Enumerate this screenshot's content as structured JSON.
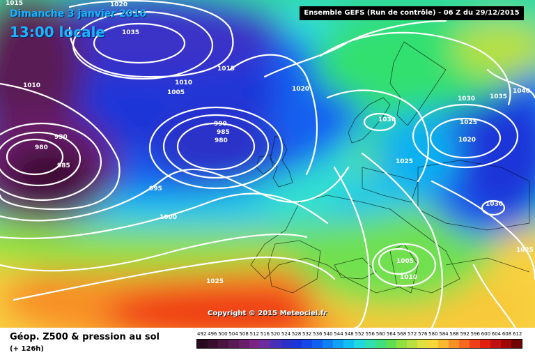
{
  "title": {
    "date": "Dimanche 3 janvier 2016",
    "local_time": "13:00 locale"
  },
  "banner": "Ensemble GEFS  (Run de contrôle)  -  06 Z du 29/12/2015",
  "copyright": "Copyright © 2015 Meteociel.fr",
  "legend": {
    "title": "Géop. Z500 & pression au sol",
    "forecast_hour": "(+ 126h)",
    "scale_values": [
      "492",
      "496",
      "500",
      "504",
      "508",
      "512",
      "516",
      "520",
      "524",
      "528",
      "532",
      "536",
      "540",
      "544",
      "548",
      "552",
      "556",
      "560",
      "564",
      "568",
      "572",
      "576",
      "580",
      "584",
      "588",
      "592",
      "596",
      "600",
      "604",
      "608",
      "612"
    ],
    "scale_colors": [
      "#2a0a20",
      "#3a0f2e",
      "#4a1440",
      "#5a1a55",
      "#6a1e6a",
      "#7a2586",
      "#6a2ca0",
      "#4a30b8",
      "#2a30c8",
      "#1a35d8",
      "#1548e8",
      "#1060f0",
      "#1080f5",
      "#10a0f5",
      "#10c0f0",
      "#20d8e0",
      "#30e0b0",
      "#40e080",
      "#60e050",
      "#90e040",
      "#b8e040",
      "#e0e040",
      "#f8d838",
      "#f8b830",
      "#f89028",
      "#f86820",
      "#f04018",
      "#e02010",
      "#c01010",
      "#a00808",
      "#700404"
    ]
  },
  "isobar_labels": [
    "1015",
    "1020",
    "1035",
    "1010",
    "1015",
    "1010",
    "1005",
    "990",
    "980",
    "985",
    "990",
    "985",
    "980",
    "995",
    "1000",
    "1020",
    "1030",
    "1025",
    "1030",
    "1035",
    "1040",
    "1025",
    "1020",
    "1030",
    "1005",
    "1010",
    "1025",
    "1025"
  ],
  "colors": {
    "title_text": "#19b4ff",
    "isobar": "#ffffff",
    "banner_bg": "#000000"
  }
}
